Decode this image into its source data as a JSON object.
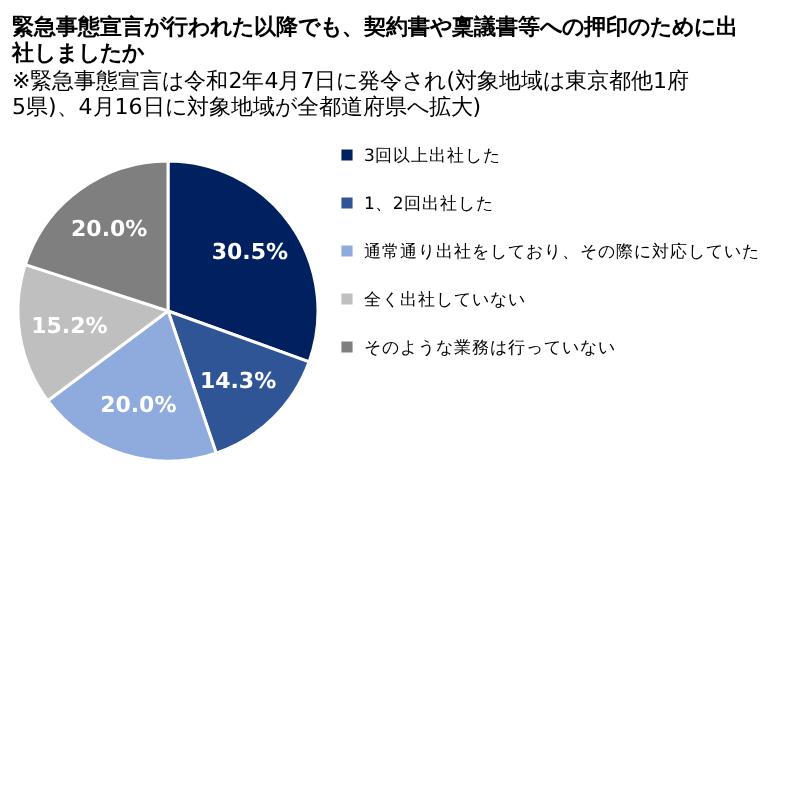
{
  "chart_data": {
    "type": "pie",
    "title": "緊急事態宣言が行われた以降でも、契約書や稟議書等への押印のために出社しましたか",
    "subtitle": "※緊急事態宣言は令和2年4月7日に発令され(対象地域は東京都他1府5県)、4月16日に対象地域が全都道府県へ拡大)",
    "categories": [
      "3回以上出社した",
      "1、2回出社した",
      "通常通り出社をしており、その際に対応していた",
      "全く出社していない",
      "そのような業務は行っていない"
    ],
    "values": [
      30.5,
      14.3,
      20.0,
      15.2,
      20.0
    ],
    "colors": [
      "#002060",
      "#2f5597",
      "#8faadc",
      "#bfbfbf",
      "#7f7f7f"
    ],
    "value_labels": [
      "30.5%",
      "14.3%",
      "20.0%",
      "15.2%",
      "20.0%"
    ],
    "legend": "right"
  }
}
